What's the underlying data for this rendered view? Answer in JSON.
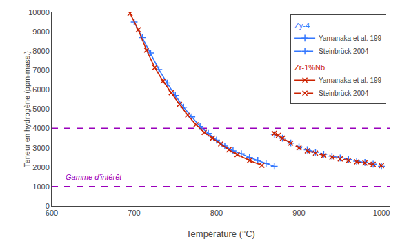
{
  "chart_data": {
    "type": "line",
    "xlabel": "Température (°C)",
    "ylabel": "Teneur en hydrogène (ppm-mass.)",
    "xlim": [
      600,
      1010
    ],
    "ylim": [
      0,
      10000
    ],
    "xticks": [
      600,
      700,
      800,
      900,
      1000
    ],
    "yticks": [
      0,
      1000,
      2000,
      3000,
      4000,
      5000,
      6000,
      7000,
      8000,
      9000,
      10000
    ],
    "grid": false,
    "legend": "upper right",
    "series": [
      {
        "name": "Yamanaka et al. 199",
        "group": "Zy-4",
        "color": "#3377FF",
        "marker": "cross",
        "line_style": "solid",
        "x": [
          700,
          710,
          720,
          730,
          740,
          750,
          760,
          770,
          780,
          790,
          800,
          810,
          820,
          830,
          840,
          850,
          860,
          870
        ],
        "values": [
          9500,
          8700,
          7900,
          7050,
          6350,
          5700,
          5100,
          4600,
          4100,
          3750,
          3400,
          3100,
          2850,
          2700,
          2500,
          2350,
          2200,
          2050
        ]
      },
      {
        "name": "Yamanaka et al. 199",
        "group": "Zr-1%Nb",
        "color": "#CC2200",
        "marker": "x",
        "line_style": "solid",
        "x": [
          695,
          705,
          715,
          725,
          735,
          745,
          755,
          765,
          775,
          785,
          795,
          805,
          815,
          825,
          840,
          855
        ],
        "values": [
          9950,
          9100,
          8050,
          7150,
          6450,
          5850,
          5250,
          4700,
          4200,
          3800,
          3500,
          3200,
          2900,
          2650,
          2350,
          2100
        ]
      },
      {
        "name": "Steinbrück 2004",
        "group": "Zy-4",
        "color": "#3377FF",
        "marker": "cross",
        "line_style": "dashed",
        "x": [
          870,
          880,
          890,
          900,
          910,
          920,
          930,
          940,
          950,
          960,
          970,
          980,
          990,
          1000
        ],
        "values": [
          3700,
          3500,
          3250,
          3050,
          2900,
          2780,
          2670,
          2570,
          2480,
          2390,
          2310,
          2250,
          2160,
          2050
        ]
      },
      {
        "name": "Steinbrück 2004",
        "group": "Zr-1%Nb",
        "color": "#CC2200",
        "marker": "x",
        "line_style": "dashed",
        "x": [
          870,
          875,
          880,
          890,
          900,
          910,
          920,
          930,
          940,
          950,
          960,
          970,
          980,
          990,
          1000
        ],
        "values": [
          3750,
          3650,
          3500,
          3250,
          3000,
          2850,
          2730,
          2610,
          2520,
          2430,
          2350,
          2280,
          2220,
          2150,
          2080
        ]
      }
    ],
    "hlines": [
      {
        "y": 4000,
        "color": "#9900BB",
        "line_style": "dashed"
      },
      {
        "y": 1000,
        "color": "#9900BB",
        "line_style": "dashed"
      }
    ],
    "annotations": [
      {
        "text": "Gamme d’intérêt",
        "x": 615,
        "y": 1220,
        "color": "#9900BB"
      }
    ]
  }
}
